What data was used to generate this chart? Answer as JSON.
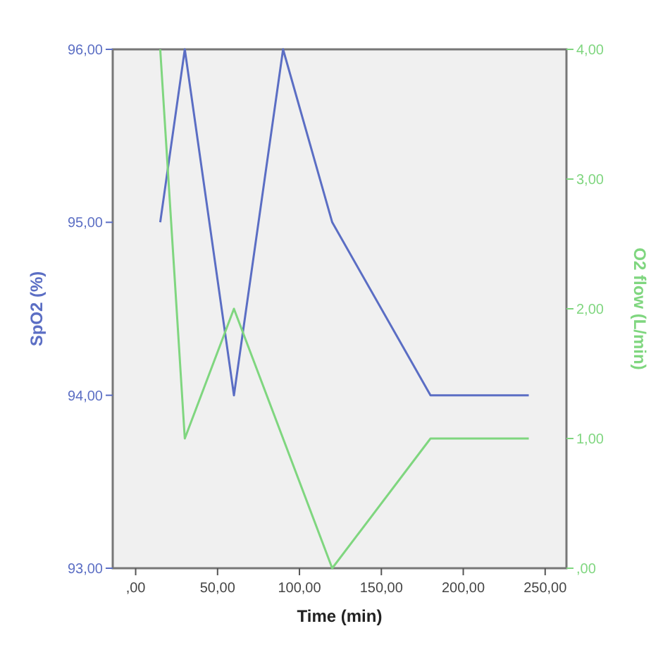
{
  "chart_data": {
    "type": "line",
    "xlabel": "Time (min)",
    "ylabel": "SpO2 (%)",
    "y2label": "O2 flow (L/min)",
    "xlim": [
      -14,
      263
    ],
    "xticks": [
      {
        "value": 0,
        "label": ",00"
      },
      {
        "value": 50,
        "label": "50,00"
      },
      {
        "value": 100,
        "label": "100,00"
      },
      {
        "value": 150,
        "label": "150,00"
      },
      {
        "value": 200,
        "label": "200,00"
      },
      {
        "value": 250,
        "label": "250,00"
      }
    ],
    "ylim": [
      93,
      96
    ],
    "yticks": [
      {
        "value": 93,
        "label": "93,00"
      },
      {
        "value": 94,
        "label": "94,00"
      },
      {
        "value": 95,
        "label": "95,00"
      },
      {
        "value": 96,
        "label": "96,00"
      }
    ],
    "y2lim": [
      0,
      4
    ],
    "y2ticks": [
      {
        "value": 0,
        "label": ",00"
      },
      {
        "value": 1,
        "label": "1,00"
      },
      {
        "value": 2,
        "label": "2,00"
      },
      {
        "value": 3,
        "label": "3,00"
      },
      {
        "value": 4,
        "label": "4,00"
      }
    ],
    "series": [
      {
        "color": "#5b6ec4",
        "x": [
          15,
          30,
          60,
          90,
          120,
          180,
          240
        ],
        "values": [
          95,
          96,
          94,
          96,
          95,
          94,
          94
        ]
      },
      {
        "color": "#7fd67f",
        "axis": "y2",
        "x": [
          15,
          30,
          60,
          120,
          180,
          240
        ],
        "values": [
          4,
          1,
          2,
          0,
          1,
          1
        ]
      }
    ]
  }
}
